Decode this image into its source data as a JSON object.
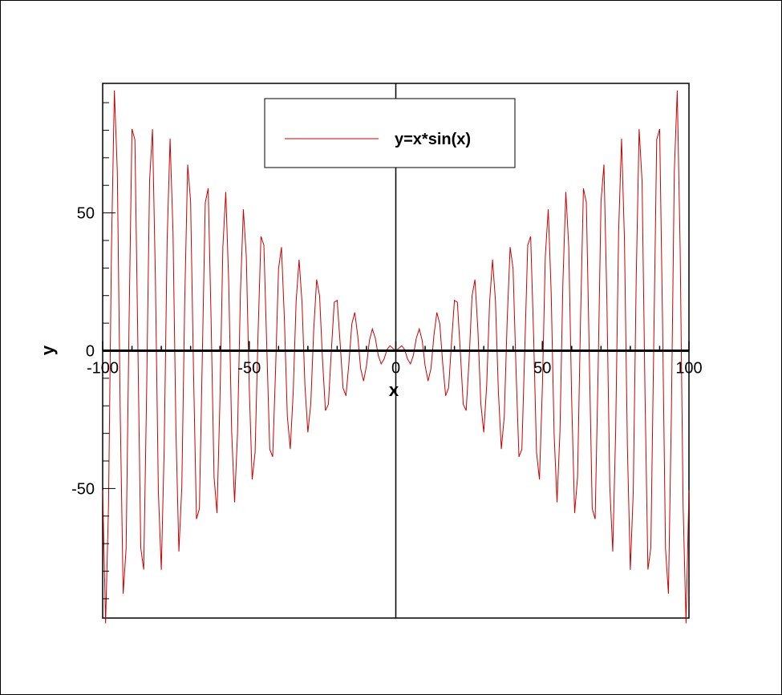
{
  "chart_data": {
    "type": "line",
    "function": "y = x*sin(x)",
    "xlabel": "x",
    "ylabel": "y",
    "xlim": [
      -100,
      100
    ],
    "ylim": [
      -97,
      97
    ],
    "xticks": [
      -100,
      -50,
      0,
      50,
      100
    ],
    "yticks": [
      -50,
      0,
      50
    ],
    "x_minor_step": 10,
    "y_minor_step": 10,
    "x_sample_step": 1,
    "grid": false,
    "zero_axes": true,
    "legend": {
      "position": "top-center",
      "entries": [
        "y=x*sin(x)"
      ]
    },
    "series": [
      {
        "name": "y=x*sin(x)",
        "color": "#cc0000",
        "sampled_every": 1
      }
    ],
    "axis_color": "#000000"
  }
}
